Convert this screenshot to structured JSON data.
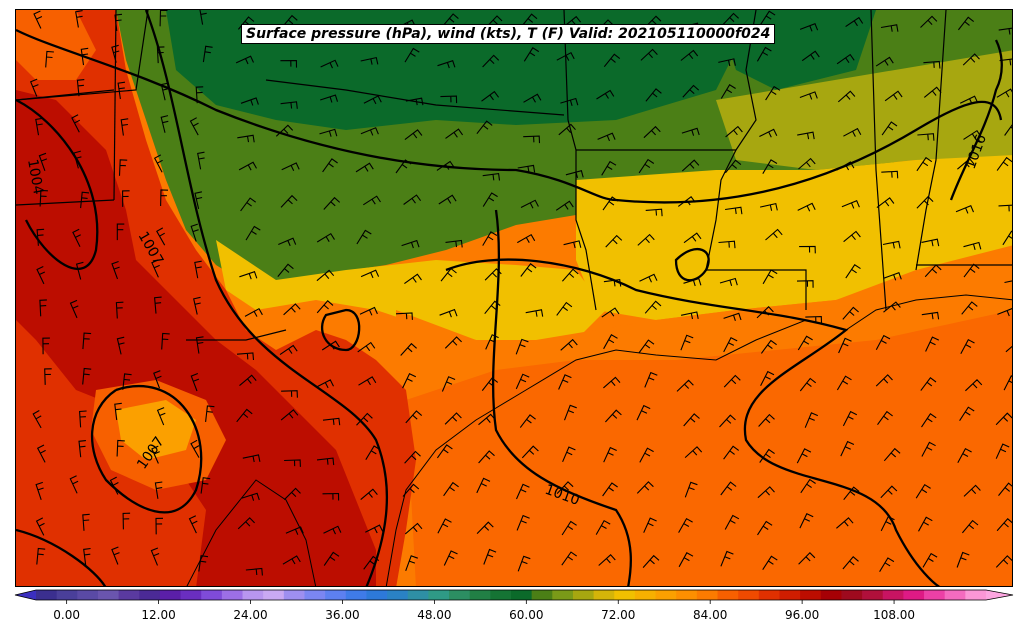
{
  "title": "Surface pressure (hPa), wind (kts), T (F) Valid: 202105110000f024",
  "colorbar": {
    "min": -4,
    "max": 120,
    "step": 3,
    "extend": "both",
    "tick_labels": [
      "0.00",
      "12.00",
      "24.00",
      "36.00",
      "48.00",
      "60.00",
      "72.00",
      "84.00",
      "96.00",
      "108.00"
    ],
    "tick_values": [
      0,
      12,
      24,
      36,
      48,
      60,
      72,
      84,
      96,
      108
    ],
    "colors": [
      "#3b2f8f",
      "#4a3f9a",
      "#5a4aa5",
      "#6a55ae",
      "#5a3aa0",
      "#4b2a96",
      "#5b1fa8",
      "#6a2ec0",
      "#7f4bd8",
      "#9c6fe6",
      "#b896ef",
      "#c9a9f3",
      "#9e8ff0",
      "#7b86f2",
      "#5d80f0",
      "#3f7be8",
      "#2d79d9",
      "#2a82c4",
      "#2e8fa5",
      "#2f9a86",
      "#2c8e62",
      "#217f45",
      "#157434",
      "#0b6a2a",
      "#4b7f16",
      "#7a9a18",
      "#a7a710",
      "#d4b409",
      "#f1c000",
      "#f7b000",
      "#fba000",
      "#fd8f00",
      "#fc7b00",
      "#f76000",
      "#ef4a00",
      "#e03000",
      "#cf1d00",
      "#bc0d00",
      "#a60005",
      "#9e0a1e",
      "#b0103b",
      "#c81462",
      "#de1a85",
      "#ec40a6",
      "#f46bbf",
      "#fb97d6"
    ],
    "under_color": "#3b2fbf",
    "over_color": "#fca6e0"
  },
  "isobars": {
    "labels": [
      "1004",
      "1007",
      "1007",
      "1010",
      "1016"
    ]
  },
  "map": {
    "fields": [
      "temperature_F",
      "mslp_hPa",
      "wind_kts"
    ],
    "region": "South-Central US / Gulf of Mexico"
  }
}
